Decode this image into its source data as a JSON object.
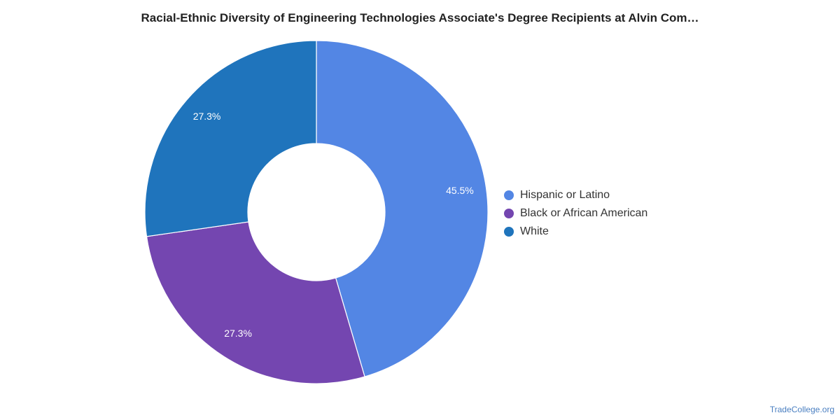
{
  "chart_data": {
    "type": "pie",
    "title": "Racial-Ethnic Diversity of Engineering Technologies Associate's Degree Recipients at Alvin Com…",
    "donut": true,
    "legend_position": "right",
    "slices": [
      {
        "name": "Hispanic or Latino",
        "value": 45.5,
        "label": "45.5%",
        "color": "#5386e4"
      },
      {
        "name": "Black or African American",
        "value": 27.3,
        "label": "27.3%",
        "color": "#7446b0"
      },
      {
        "name": "White",
        "value": 27.3,
        "label": "27.3%",
        "color": "#1f74bc"
      }
    ]
  },
  "watermark": "TradeCollege.org"
}
